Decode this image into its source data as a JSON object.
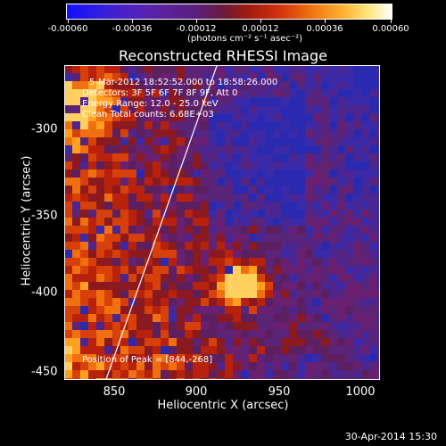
{
  "colorbar": {
    "ticks": [
      "-0.00060",
      "-0.00036",
      "-0.00012",
      "0.00012",
      "0.00036",
      "0.00060"
    ],
    "units": "(photons cm⁻² s⁻¹ asec⁻²)"
  },
  "title": "Reconstructed RHESSI Image",
  "info": {
    "time": "5-Mar-2012 18:52:52.000 to 18:58:26.000",
    "detectors": "Detectors: 3F 5F 6F 7F 8F 9F, Att 0",
    "energy": "Energy Range: 12.0 - 25.0 keV",
    "clean": "Clean    Total counts: 6.68E+03",
    "peak": "Position of Peak = [844,-268]"
  },
  "axes": {
    "xlabel": "Heliocentric X (arcsec)",
    "ylabel": "Heliocentric Y (arcsec)",
    "xticks": [
      "850",
      "900",
      "950",
      "1000"
    ],
    "yticks": [
      "-300",
      "-350",
      "-400",
      "-450"
    ]
  },
  "timestamp": "30-Apr-2014 15:30"
}
